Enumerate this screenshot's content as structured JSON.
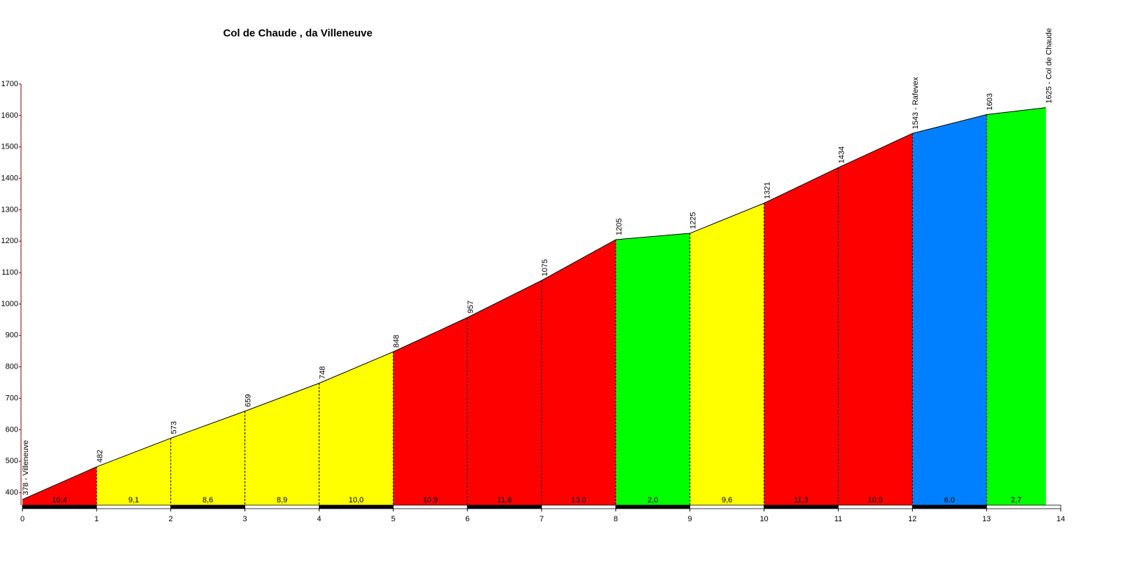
{
  "chart_data": {
    "type": "area",
    "title": "Col de Chaude , da Villeneuve",
    "x": [
      0,
      1,
      2,
      3,
      4,
      5,
      6,
      7,
      8,
      9,
      10,
      11,
      12,
      13,
      13.8
    ],
    "values": [
      378,
      482,
      573,
      659,
      748,
      848,
      957,
      1075,
      1205,
      1225,
      1321,
      1434,
      1543,
      1603,
      1625
    ],
    "value_labels": [
      "378 - Villeneuve",
      "482",
      "573",
      "659",
      "748",
      "848",
      "957",
      "1075",
      "1205",
      "1225",
      "1321",
      "1434",
      "1543 - Rafevex",
      "1603",
      "1625 - Col de Chaude"
    ],
    "gradients": {
      "values": [
        10.4,
        9.1,
        8.6,
        8.9,
        10.0,
        10.9,
        11.8,
        13.0,
        2.0,
        9.6,
        11.3,
        10.9,
        6.0,
        2.7
      ],
      "value_labels": [
        "10,4",
        "9,1",
        "8,6",
        "8,9",
        "10,0",
        "10,9",
        "11,8",
        "13,0",
        "2,0",
        "9,6",
        "11,3",
        "10,9",
        "6,0",
        "2,7"
      ]
    },
    "colors": [
      "#ff0000",
      "#ffff00",
      "#ffff00",
      "#ffff00",
      "#ffff00",
      "#ff0000",
      "#ff0000",
      "#ff0000",
      "#00ff00",
      "#ffff00",
      "#ff0000",
      "#ff0000",
      "#0080ff",
      "#00ff00"
    ],
    "xlim": [
      0,
      14
    ],
    "xticks": [
      0,
      1,
      2,
      3,
      4,
      5,
      6,
      7,
      8,
      9,
      10,
      11,
      12,
      13,
      14
    ],
    "ylim": [
      360,
      1700
    ],
    "yticks": [
      400,
      500,
      600,
      700,
      800,
      900,
      1000,
      1100,
      1200,
      1300,
      1400,
      1500,
      1600,
      1700
    ]
  }
}
